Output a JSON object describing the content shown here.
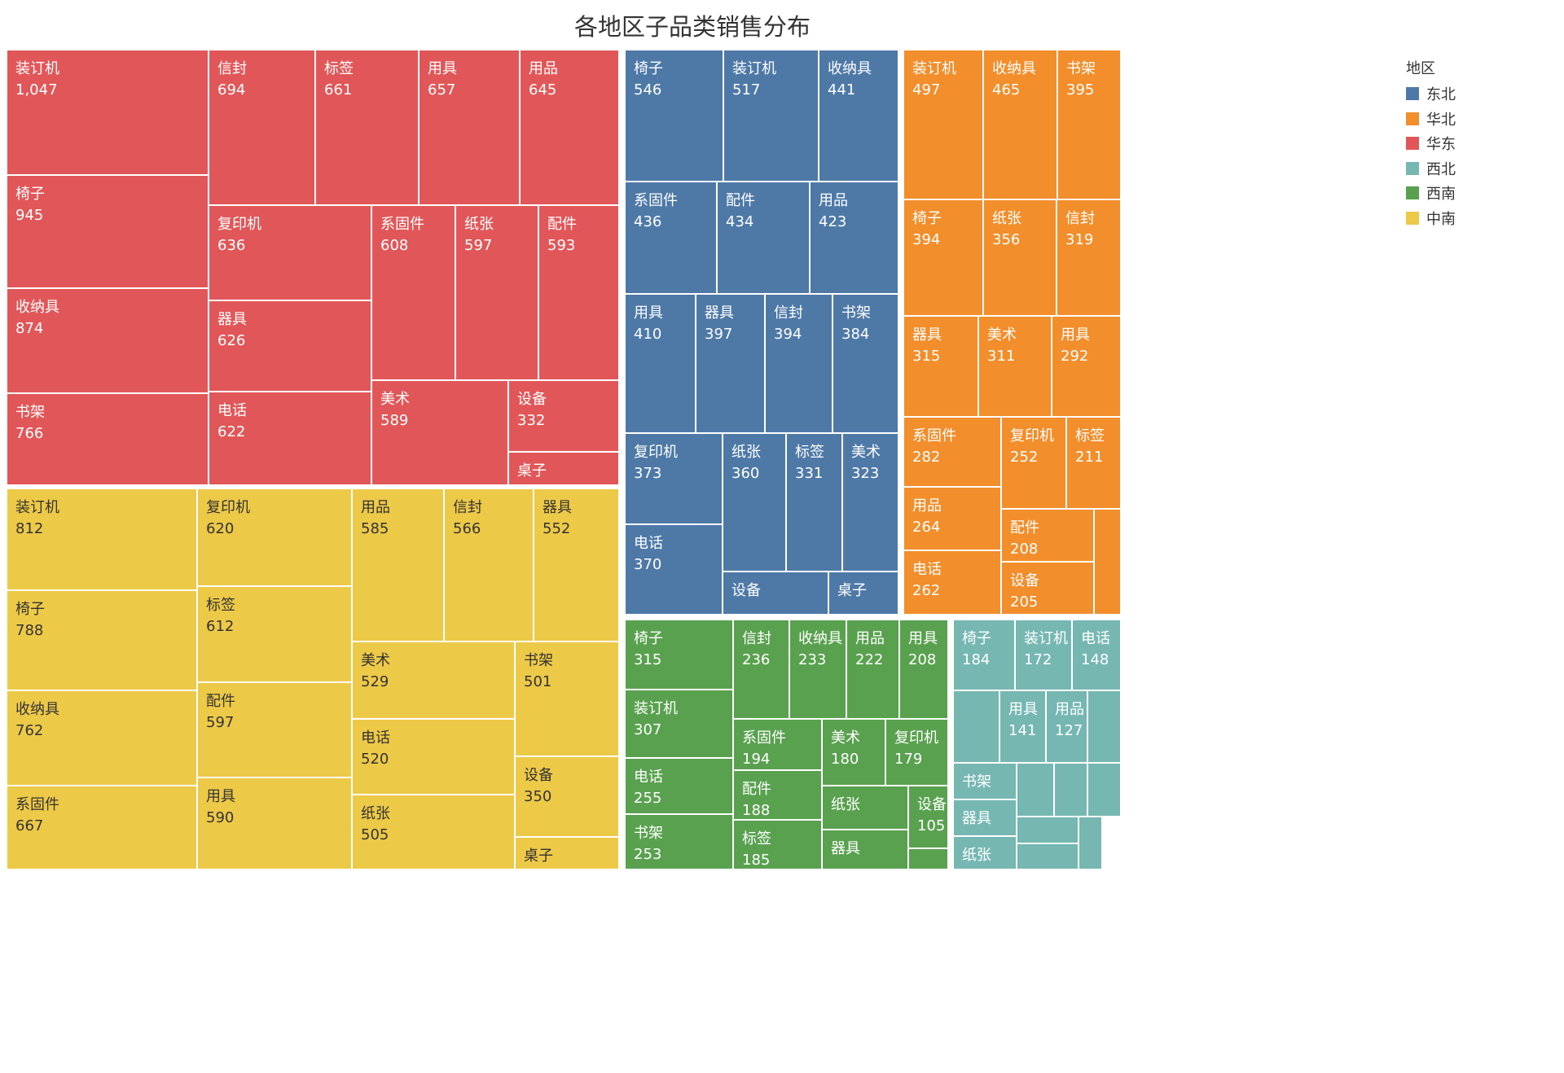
{
  "chart_data": {
    "type": "treemap",
    "title": "各地区子品类销售分布",
    "legend_title": "地区",
    "legend_position": "right",
    "legend": [
      {
        "name": "东北",
        "color": "#4e79a7"
      },
      {
        "name": "华北",
        "color": "#f28e2b"
      },
      {
        "name": "华东",
        "color": "#e15759"
      },
      {
        "name": "西北",
        "color": "#76b7b2"
      },
      {
        "name": "西南",
        "color": "#59a14f"
      },
      {
        "name": "中南",
        "color": "#edc948"
      }
    ],
    "series": [
      {
        "name": "华东",
        "color": "#e15759",
        "items": [
          {
            "label": "装订机",
            "value": 1047,
            "value_text": "1,047"
          },
          {
            "label": "椅子",
            "value": 945,
            "value_text": "945"
          },
          {
            "label": "收纳具",
            "value": 874,
            "value_text": "874"
          },
          {
            "label": "书架",
            "value": 766,
            "value_text": "766"
          },
          {
            "label": "信封",
            "value": 694,
            "value_text": "694"
          },
          {
            "label": "标签",
            "value": 661,
            "value_text": "661"
          },
          {
            "label": "用具",
            "value": 657,
            "value_text": "657"
          },
          {
            "label": "用品",
            "value": 645,
            "value_text": "645"
          },
          {
            "label": "复印机",
            "value": 636,
            "value_text": "636"
          },
          {
            "label": "器具",
            "value": 626,
            "value_text": "626"
          },
          {
            "label": "电话",
            "value": 622,
            "value_text": "622"
          },
          {
            "label": "系固件",
            "value": 608,
            "value_text": "608"
          },
          {
            "label": "纸张",
            "value": 597,
            "value_text": "597"
          },
          {
            "label": "配件",
            "value": 593,
            "value_text": "593"
          },
          {
            "label": "美术",
            "value": 589,
            "value_text": "589"
          },
          {
            "label": "设备",
            "value": 332,
            "value_text": "332"
          },
          {
            "label": "桌子",
            "value": 130,
            "value_text": ""
          }
        ]
      },
      {
        "name": "东北",
        "color": "#4e79a7",
        "items": [
          {
            "label": "椅子",
            "value": 546,
            "value_text": "546"
          },
          {
            "label": "装订机",
            "value": 517,
            "value_text": "517"
          },
          {
            "label": "收纳具",
            "value": 441,
            "value_text": "441"
          },
          {
            "label": "系固件",
            "value": 436,
            "value_text": "436"
          },
          {
            "label": "配件",
            "value": 434,
            "value_text": "434"
          },
          {
            "label": "用品",
            "value": 423,
            "value_text": "423"
          },
          {
            "label": "用具",
            "value": 410,
            "value_text": "410"
          },
          {
            "label": "器具",
            "value": 397,
            "value_text": "397"
          },
          {
            "label": "信封",
            "value": 394,
            "value_text": "394"
          },
          {
            "label": "书架",
            "value": 384,
            "value_text": "384"
          },
          {
            "label": "复印机",
            "value": 373,
            "value_text": "373"
          },
          {
            "label": "纸张",
            "value": 360,
            "value_text": "360"
          },
          {
            "label": "标签",
            "value": 331,
            "value_text": "331"
          },
          {
            "label": "美术",
            "value": 323,
            "value_text": "323"
          },
          {
            "label": "电话",
            "value": 370,
            "value_text": "370"
          },
          {
            "label": "设备",
            "value": 190,
            "value_text": ""
          },
          {
            "label": "桌子",
            "value": 125,
            "value_text": ""
          }
        ]
      },
      {
        "name": "华北",
        "color": "#f28e2b",
        "items": [
          {
            "label": "装订机",
            "value": 497,
            "value_text": "497"
          },
          {
            "label": "收纳具",
            "value": 465,
            "value_text": "465"
          },
          {
            "label": "书架",
            "value": 395,
            "value_text": "395"
          },
          {
            "label": "椅子",
            "value": 394,
            "value_text": "394"
          },
          {
            "label": "纸张",
            "value": 356,
            "value_text": "356"
          },
          {
            "label": "信封",
            "value": 319,
            "value_text": "319"
          },
          {
            "label": "器具",
            "value": 315,
            "value_text": "315"
          },
          {
            "label": "美术",
            "value": 311,
            "value_text": "311"
          },
          {
            "label": "用具",
            "value": 292,
            "value_text": "292"
          },
          {
            "label": "系固件",
            "value": 282,
            "value_text": "282"
          },
          {
            "label": "复印机",
            "value": 252,
            "value_text": "252"
          },
          {
            "label": "标签",
            "value": 211,
            "value_text": "211"
          },
          {
            "label": "用品",
            "value": 264,
            "value_text": "264"
          },
          {
            "label": "配件",
            "value": 208,
            "value_text": "208"
          },
          {
            "label": "电话",
            "value": 262,
            "value_text": "262"
          },
          {
            "label": "设备",
            "value": 205,
            "value_text": "205"
          },
          {
            "label": "",
            "value": 50,
            "value_text": ""
          }
        ]
      },
      {
        "name": "中南",
        "color": "#edc948",
        "items": [
          {
            "label": "装订机",
            "value": 812,
            "value_text": "812"
          },
          {
            "label": "椅子",
            "value": 788,
            "value_text": "788"
          },
          {
            "label": "收纳具",
            "value": 762,
            "value_text": "762"
          },
          {
            "label": "系固件",
            "value": 667,
            "value_text": "667"
          },
          {
            "label": "复印机",
            "value": 620,
            "value_text": "620"
          },
          {
            "label": "标签",
            "value": 612,
            "value_text": "612"
          },
          {
            "label": "配件",
            "value": 597,
            "value_text": "597"
          },
          {
            "label": "用具",
            "value": 590,
            "value_text": "590"
          },
          {
            "label": "用品",
            "value": 585,
            "value_text": "585"
          },
          {
            "label": "信封",
            "value": 566,
            "value_text": "566"
          },
          {
            "label": "器具",
            "value": 552,
            "value_text": "552"
          },
          {
            "label": "美术",
            "value": 529,
            "value_text": "529"
          },
          {
            "label": "电话",
            "value": 520,
            "value_text": "520"
          },
          {
            "label": "纸张",
            "value": 505,
            "value_text": "505"
          },
          {
            "label": "书架",
            "value": 501,
            "value_text": "501"
          },
          {
            "label": "设备",
            "value": 350,
            "value_text": "350"
          },
          {
            "label": "桌子",
            "value": 140,
            "value_text": ""
          }
        ]
      },
      {
        "name": "西南",
        "color": "#59a14f",
        "items": [
          {
            "label": "椅子",
            "value": 315,
            "value_text": "315"
          },
          {
            "label": "装订机",
            "value": 307,
            "value_text": "307"
          },
          {
            "label": "电话",
            "value": 255,
            "value_text": "255"
          },
          {
            "label": "书架",
            "value": 253,
            "value_text": "253"
          },
          {
            "label": "信封",
            "value": 236,
            "value_text": "236"
          },
          {
            "label": "收纳具",
            "value": 233,
            "value_text": "233"
          },
          {
            "label": "用品",
            "value": 222,
            "value_text": "222"
          },
          {
            "label": "用具",
            "value": 208,
            "value_text": "208"
          },
          {
            "label": "系固件",
            "value": 194,
            "value_text": "194"
          },
          {
            "label": "美术",
            "value": 180,
            "value_text": "180"
          },
          {
            "label": "复印机",
            "value": 179,
            "value_text": "179"
          },
          {
            "label": "配件",
            "value": 188,
            "value_text": "188"
          },
          {
            "label": "标签",
            "value": 185,
            "value_text": "185"
          },
          {
            "label": "纸张",
            "value": 140,
            "value_text": ""
          },
          {
            "label": "设备",
            "value": 105,
            "value_text": "105"
          },
          {
            "label": "器具",
            "value": 130,
            "value_text": ""
          },
          {
            "label": "",
            "value": 40,
            "value_text": ""
          }
        ]
      },
      {
        "name": "西北",
        "color": "#76b7b2",
        "items": [
          {
            "label": "椅子",
            "value": 184,
            "value_text": "184"
          },
          {
            "label": "装订机",
            "value": 172,
            "value_text": "172"
          },
          {
            "label": "电话",
            "value": 148,
            "value_text": "148"
          },
          {
            "label": "",
            "value": 110,
            "value_text": ""
          },
          {
            "label": "用具",
            "value": 141,
            "value_text": "141"
          },
          {
            "label": "用品",
            "value": 127,
            "value_text": "127"
          },
          {
            "label": "",
            "value": 80,
            "value_text": ""
          },
          {
            "label": "书架",
            "value": 100,
            "value_text": ""
          },
          {
            "label": "器具",
            "value": 100,
            "value_text": ""
          },
          {
            "label": "纸张",
            "value": 100,
            "value_text": ""
          },
          {
            "label": "",
            "value": 60,
            "value_text": ""
          },
          {
            "label": "",
            "value": 60,
            "value_text": ""
          },
          {
            "label": "",
            "value": 60,
            "value_text": ""
          },
          {
            "label": "",
            "value": 40,
            "value_text": ""
          },
          {
            "label": "",
            "value": 30,
            "value_text": ""
          },
          {
            "label": "",
            "value": 30,
            "value_text": ""
          }
        ]
      }
    ]
  }
}
